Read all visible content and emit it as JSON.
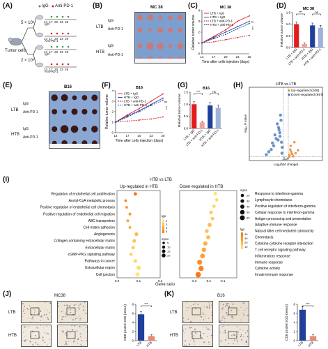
{
  "panels": {
    "A": {
      "label": "(A)",
      "legend_igg": "IgG",
      "legend_anti": "Anti-PD-1",
      "tumor_cells": "Tumor cells",
      "dose_top": "5 × 10⁵",
      "dose_bottom": "2 × 10⁶",
      "days": [
        "14",
        "17",
        "20",
        "23",
        "26"
      ],
      "arms": [
        "IgG",
        "Anti-PD-1",
        "IgG",
        "Anti-PD-1"
      ],
      "days_label": "(Days)"
    },
    "B": {
      "label": "(B)",
      "title": "MC 38",
      "groups": [
        "LTB",
        "HTB"
      ],
      "rows": [
        "IgG",
        "Anti-PD-1",
        "IgG",
        "Anti-PD-1"
      ]
    },
    "C": {
      "label": "(C)",
      "title": "MC 38"
    },
    "D": {
      "label": "(D)",
      "title": "MC 38"
    },
    "E": {
      "label": "(E)",
      "title": "B16",
      "groups": [
        "LTB",
        "HTB"
      ],
      "rows": [
        "IgG",
        "Anti-PD-1",
        "IgG",
        "Anti-PD-1"
      ]
    },
    "F": {
      "label": "(F)",
      "title": "B16"
    },
    "G": {
      "label": "(G)",
      "title": "B16"
    },
    "H": {
      "label": "(H)",
      "title": "HTB vs LTB"
    },
    "I": {
      "label": "(I)",
      "title": "HTB vs LTB",
      "left_header": "Up-regulated in HTB",
      "right_header": "Down-regulated in HTB",
      "xlabel": "Gene ratio",
      "legend_lgp": "lgp",
      "legend_input": "input"
    },
    "J": {
      "label": "(J)",
      "title": "MC38",
      "rows": [
        "LTB",
        "HTB"
      ]
    },
    "K": {
      "label": "(K)",
      "title": "B16",
      "rows": [
        "LTB",
        "HTB"
      ]
    }
  },
  "chart_data": [
    {
      "panel": "C",
      "type": "line",
      "title": "MC 38",
      "xlabel": "Time after cells injection (days)",
      "ylabel": "Relative tumor volume",
      "x": [
        14,
        17,
        20,
        23,
        26
      ],
      "xlim": [
        14,
        26
      ],
      "ylim": [
        0,
        4
      ],
      "yticks": [
        0,
        1,
        2,
        3,
        4
      ],
      "series": [
        {
          "name": "LTB + IgG",
          "color": "#e41a1c",
          "dashed": false,
          "values": [
            1.0,
            1.6,
            2.2,
            3.0,
            3.5
          ]
        },
        {
          "name": "HTB + IgG",
          "color": "#1f3f9a",
          "dashed": false,
          "values": [
            1.0,
            1.5,
            2.0,
            2.5,
            3.0
          ]
        },
        {
          "name": "LTB + anti-PD-1",
          "color": "#e41a1c",
          "dashed": true,
          "values": [
            1.0,
            1.1,
            1.3,
            1.5,
            1.7
          ]
        },
        {
          "name": "HTB + anti-PD-1",
          "color": "#1f3f9a",
          "dashed": true,
          "values": [
            1.0,
            1.4,
            1.8,
            2.3,
            2.8
          ]
        }
      ],
      "annotations": [
        "ns",
        "***"
      ]
    },
    {
      "panel": "D",
      "type": "bar",
      "title": "MC 38",
      "ylabel": "Relative tumor volume",
      "categories": [
        "LTB + IgG",
        "LTB + anti-PD-1",
        "HTB + IgG",
        "HTB + anti-PD-1"
      ],
      "values": [
        1.0,
        0.15,
        0.95,
        0.85
      ],
      "errors": [
        0.1,
        0.05,
        0.1,
        0.1
      ],
      "colors": [
        "#e41a1c",
        "#f4a09a",
        "#1f3f9a",
        "#9fb3d9"
      ],
      "ylim": [
        0,
        1.5
      ],
      "yticks": [
        0.0,
        0.5,
        1.0,
        1.5
      ],
      "annotations": [
        "***",
        "ns"
      ]
    },
    {
      "panel": "F",
      "type": "line",
      "title": "B16",
      "xlabel": "Time after cells injection (days)",
      "ylabel": "Relative tumor volume",
      "x": [
        14,
        17,
        20,
        23,
        26
      ],
      "xlim": [
        14,
        26
      ],
      "ylim": [
        0,
        4
      ],
      "yticks": [
        0,
        1,
        2,
        3,
        4
      ],
      "series": [
        {
          "name": "LTB + IgG",
          "color": "#e41a1c",
          "dashed": false,
          "values": [
            1.0,
            1.7,
            2.3,
            3.0,
            3.7
          ]
        },
        {
          "name": "HTB + IgG",
          "color": "#1f3f9a",
          "dashed": false,
          "values": [
            1.0,
            1.6,
            2.1,
            2.7,
            3.3
          ]
        },
        {
          "name": "LTB + anti-PD-1",
          "color": "#e41a1c",
          "dashed": true,
          "values": [
            1.0,
            1.1,
            1.2,
            1.3,
            1.5
          ]
        },
        {
          "name": "HTB + anti-PD-1",
          "color": "#1f3f9a",
          "dashed": true,
          "values": [
            1.0,
            1.5,
            2.0,
            2.6,
            3.1
          ]
        }
      ],
      "annotations": [
        "ns",
        "***"
      ]
    },
    {
      "panel": "G",
      "type": "bar",
      "title": "B16",
      "ylabel": "Relative tumor volume",
      "categories": [
        "LTB + IgG",
        "LTB + anti-PD-1",
        "HTB + IgG",
        "HTB + anti-PD-1"
      ],
      "values": [
        1.0,
        0.25,
        0.95,
        0.85
      ],
      "errors": [
        0.12,
        0.06,
        0.12,
        0.12
      ],
      "colors": [
        "#e41a1c",
        "#f4a09a",
        "#1f3f9a",
        "#9fb3d9"
      ],
      "ylim": [
        0,
        1.5
      ],
      "yticks": [
        0.0,
        0.5,
        1.0,
        1.5
      ],
      "annotations": [
        "***",
        "ns"
      ]
    },
    {
      "panel": "H",
      "type": "scatter",
      "title": "HTB vs LTB",
      "xlabel": "Log₂(fold change)",
      "ylabel": "-log₁₀ P value",
      "legend": [
        {
          "name": "Up-regulated (108)",
          "color": "#e8892f"
        },
        {
          "name": "Down-regulated (667)",
          "color": "#3b6fb6"
        }
      ],
      "legend_position": "top-right",
      "xlim": [
        -15,
        15
      ],
      "ylim": [
        0,
        100
      ],
      "points_up": [
        [
          1.5,
          8
        ],
        [
          2.2,
          12
        ],
        [
          3.0,
          6
        ],
        [
          2.0,
          20
        ],
        [
          4.0,
          10
        ],
        [
          1.8,
          15
        ],
        [
          3.5,
          25
        ],
        [
          2.6,
          9
        ],
        [
          5.0,
          14
        ],
        [
          1.4,
          5
        ]
      ],
      "points_down": [
        [
          -2.0,
          55
        ],
        [
          -3.0,
          45
        ],
        [
          -2.5,
          38
        ],
        [
          -4.0,
          30
        ],
        [
          -1.8,
          25
        ],
        [
          -5.0,
          20
        ],
        [
          -3.5,
          50
        ],
        [
          -6.0,
          15
        ],
        [
          -2.2,
          62
        ],
        [
          -7.0,
          12
        ],
        [
          -1.5,
          18
        ],
        [
          -3.2,
          28
        ],
        [
          -4.5,
          35
        ],
        [
          -2.8,
          42
        ],
        [
          -8.0,
          8
        ],
        [
          -1.6,
          10
        ],
        [
          -5.5,
          24
        ],
        [
          -2.4,
          33
        ]
      ],
      "points_ns": [
        [
          -0.5,
          2
        ],
        [
          0.3,
          1
        ],
        [
          -0.8,
          4
        ],
        [
          0.6,
          3
        ],
        [
          -0.2,
          1.5
        ],
        [
          0.9,
          2.5
        ],
        [
          -1.1,
          1
        ],
        [
          0.1,
          0.5
        ]
      ]
    },
    {
      "panel": "I-left",
      "type": "scatter",
      "title": "Up-regulated in HTB",
      "xlabel": "Gene ratio",
      "xlim": [
        0,
        0.2
      ],
      "xticks": [
        0.0,
        0.1,
        0.2
      ],
      "lgp_ticks": [
        2,
        3,
        4,
        5
      ],
      "input_sizes": [
        5,
        10,
        15,
        20
      ],
      "terms": [
        {
          "term": "Regulation of endothelial cell proliferation",
          "ratio": 0.085,
          "lgp": 5.4,
          "input": 9
        },
        {
          "term": "Acetyl-CoA metabolic process",
          "ratio": 0.04,
          "lgp": 5.0,
          "input": 4
        },
        {
          "term": "Positive regulation of endothelial cell chemotaxis",
          "ratio": 0.045,
          "lgp": 4.6,
          "input": 4
        },
        {
          "term": "Positive regulation of endothelial cell migration",
          "ratio": 0.06,
          "lgp": 4.2,
          "input": 6
        },
        {
          "term": "ABC transporters",
          "ratio": 0.05,
          "lgp": 4.0,
          "input": 5
        },
        {
          "term": "Cell-matrix adhesion",
          "ratio": 0.06,
          "lgp": 3.6,
          "input": 6
        },
        {
          "term": "Angiogenesis",
          "ratio": 0.09,
          "lgp": 3.3,
          "input": 12
        },
        {
          "term": "Collagen-containing extracellular matrix",
          "ratio": 0.08,
          "lgp": 3.0,
          "input": 11
        },
        {
          "term": "Extracellular matrix",
          "ratio": 0.075,
          "lgp": 2.8,
          "input": 10
        },
        {
          "term": "cGMP-PKG signaling pathway",
          "ratio": 0.065,
          "lgp": 2.6,
          "input": 8
        },
        {
          "term": "Pathways in cancer",
          "ratio": 0.085,
          "lgp": 2.4,
          "input": 12
        },
        {
          "term": "Extracellular region",
          "ratio": 0.1,
          "lgp": 2.2,
          "input": 18
        },
        {
          "term": "Cell junction",
          "ratio": 0.095,
          "lgp": 2.0,
          "input": 16
        }
      ]
    },
    {
      "panel": "I-right",
      "type": "scatter",
      "title": "Down-regulated in HTB",
      "xlabel": "Gene ratio",
      "xlim": [
        -0.4,
        0
      ],
      "xticks": [
        -0.3,
        -0.2,
        -0.1
      ],
      "lgp_ticks": [
        10,
        20,
        30,
        40
      ],
      "input_sizes": [
        20,
        30,
        40,
        50,
        60
      ],
      "terms": [
        {
          "term": "Response to interferon-gamma",
          "ratio": -0.15,
          "lgp": 8,
          "input": 20
        },
        {
          "term": "Lymphocyte chemotaxis",
          "ratio": -0.14,
          "lgp": 10,
          "input": 18
        },
        {
          "term": "Positive regulation of interferon-gamma",
          "ratio": -0.16,
          "lgp": 11,
          "input": 20
        },
        {
          "term": "Cellular response to interferon-gamma",
          "ratio": -0.18,
          "lgp": 14,
          "input": 24
        },
        {
          "term": "Antigen processing and presentation",
          "ratio": -0.17,
          "lgp": 15,
          "input": 22
        },
        {
          "term": "Adaptive immune response",
          "ratio": -0.19,
          "lgp": 20,
          "input": 30
        },
        {
          "term": "Natural killer cell mediated cytotoxicity",
          "ratio": -0.21,
          "lgp": 18,
          "input": 28
        },
        {
          "term": "Chemotaxis",
          "ratio": -0.2,
          "lgp": 21,
          "input": 30
        },
        {
          "term": "Cytokine-cytokine receptor interaction",
          "ratio": -0.22,
          "lgp": 24,
          "input": 36
        },
        {
          "term": "T cell receptor signaling pathway",
          "ratio": -0.23,
          "lgp": 27,
          "input": 38
        },
        {
          "term": "Inflammatory response",
          "ratio": -0.24,
          "lgp": 31,
          "input": 44
        },
        {
          "term": "Immune response",
          "ratio": -0.26,
          "lgp": 36,
          "input": 50
        },
        {
          "term": "Cytokine activity",
          "ratio": -0.25,
          "lgp": 40,
          "input": 54
        },
        {
          "term": "Innate immune response",
          "ratio": -0.27,
          "lgp": 44,
          "input": 60
        }
      ]
    },
    {
      "panel": "J",
      "type": "bar",
      "ylabel": "CD8 protein IOD (mean)",
      "categories": [
        "LTB",
        "HTB"
      ],
      "values": [
        5.8,
        1.0
      ],
      "errors": [
        0.6,
        0.3
      ],
      "colors": [
        "#1f3f9a",
        "#e8897a"
      ],
      "ylim": [
        0,
        8
      ],
      "yticks": [
        0,
        2,
        4,
        6,
        8
      ],
      "annotations": [
        "***"
      ]
    },
    {
      "panel": "K",
      "type": "bar",
      "ylabel": "CD8 protein IOD (mean)",
      "categories": [
        "LTB",
        "HTB"
      ],
      "values": [
        6.8,
        1.0
      ],
      "errors": [
        0.7,
        0.3
      ],
      "colors": [
        "#1f3f9a",
        "#e8897a"
      ],
      "ylim": [
        0,
        8
      ],
      "yticks": [
        0,
        2,
        4,
        6,
        8
      ],
      "annotations": [
        "***"
      ]
    }
  ]
}
